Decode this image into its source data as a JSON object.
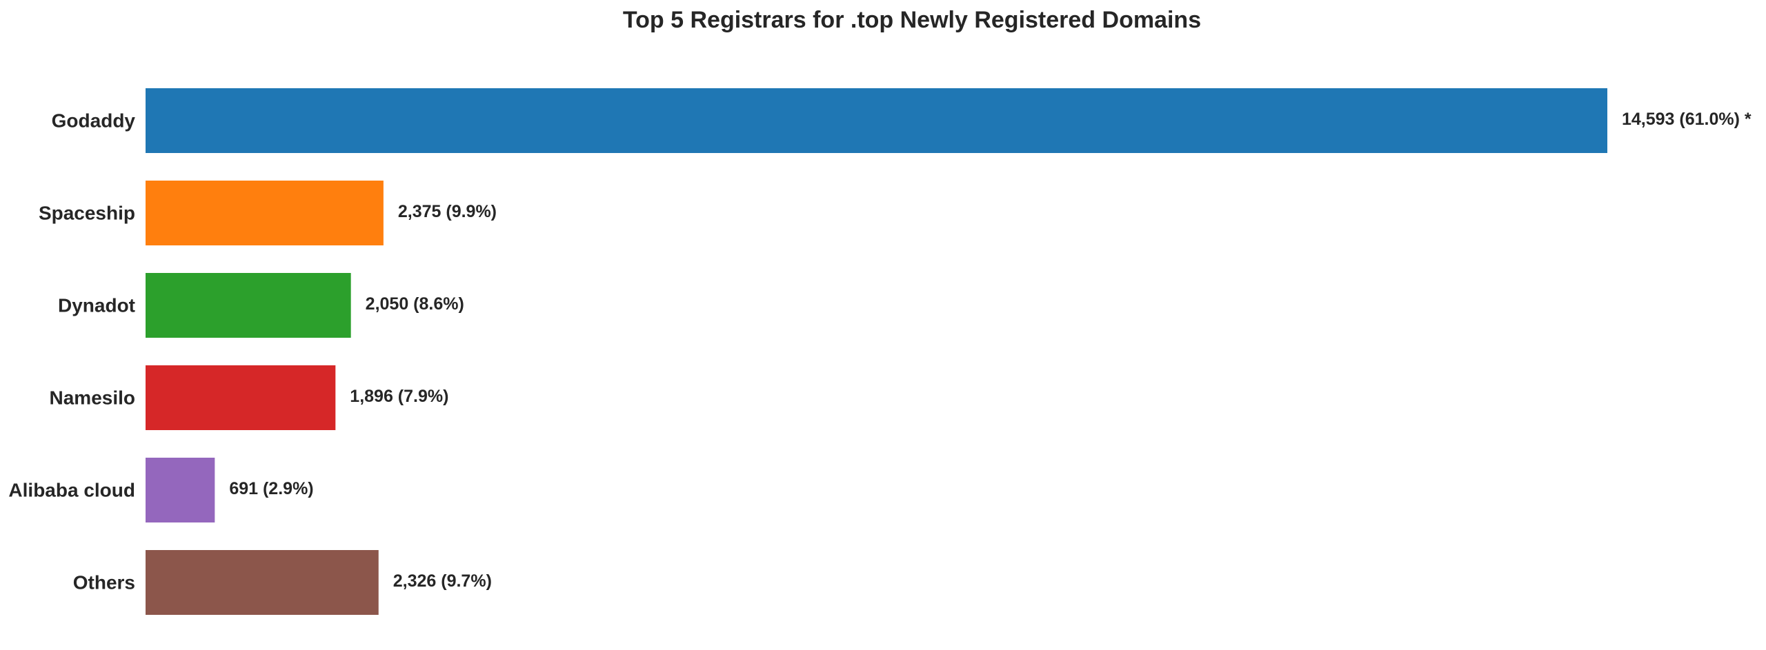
{
  "chart_data": {
    "type": "bar",
    "orientation": "horizontal",
    "title": "Top 5 Registrars for .top Newly Registered Domains",
    "xlabel": "",
    "ylabel": "",
    "grid": false,
    "legend": "none",
    "categories": [
      "Godaddy",
      "Spaceship",
      "Dynadot",
      "Namesilo",
      "Alibaba cloud",
      "Others"
    ],
    "values": [
      14593,
      2375,
      2050,
      1896,
      691,
      2326
    ],
    "data_labels": [
      "14,593 (61.0%) *",
      "2,375 (9.9%)",
      "2,050 (8.6%)",
      "1,896 (7.9%)",
      "691 (2.9%)",
      "2,326 (9.7%)"
    ],
    "colors": [
      "#1f77b4",
      "#ff7f0e",
      "#2ca02c",
      "#d62728",
      "#9467bd",
      "#8c564b"
    ],
    "xlim": [
      0,
      16200
    ]
  }
}
